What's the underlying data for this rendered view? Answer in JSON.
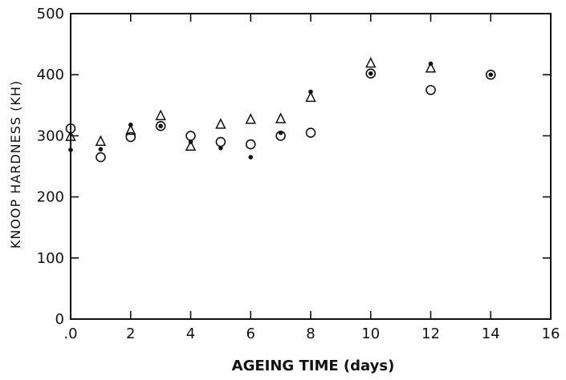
{
  "chart_data": {
    "type": "scatter",
    "title": "",
    "xlabel": "AGEING TIME (days)",
    "ylabel": "KNOOP HARDNESS (KH)",
    "xlim": [
      0,
      16
    ],
    "ylim": [
      0,
      500
    ],
    "xticks": [
      0,
      2,
      4,
      6,
      8,
      10,
      12,
      14,
      16
    ],
    "xtick_labels": [
      ".0",
      "2",
      "4",
      "6",
      "8",
      "10",
      "12",
      "14",
      "16"
    ],
    "yticks": [
      0,
      100,
      200,
      300,
      400,
      500
    ],
    "ytick_labels": [
      "0",
      "100",
      "200",
      "300",
      "400",
      "500"
    ],
    "grid": false,
    "legend": "none",
    "series": [
      {
        "marker": "open-circle",
        "x": [
          0,
          1,
          2,
          3,
          4,
          5,
          6,
          7,
          8,
          10,
          12,
          14
        ],
        "y": [
          312,
          265,
          298,
          316,
          300,
          290,
          286,
          300,
          305,
          402,
          375,
          400
        ]
      },
      {
        "marker": "filled-dot",
        "x": [
          0,
          1,
          2,
          3,
          4,
          5,
          6,
          7,
          8,
          10,
          12,
          14
        ],
        "y": [
          277,
          278,
          318,
          316,
          290,
          280,
          265,
          305,
          372,
          402,
          418,
          400
        ]
      },
      {
        "marker": "open-triangle",
        "x": [
          0,
          1,
          2,
          3,
          4,
          5,
          6,
          7,
          8,
          10,
          12
        ],
        "y": [
          298,
          290,
          308,
          332,
          282,
          318,
          326,
          327,
          362,
          418,
          410
        ]
      }
    ]
  }
}
